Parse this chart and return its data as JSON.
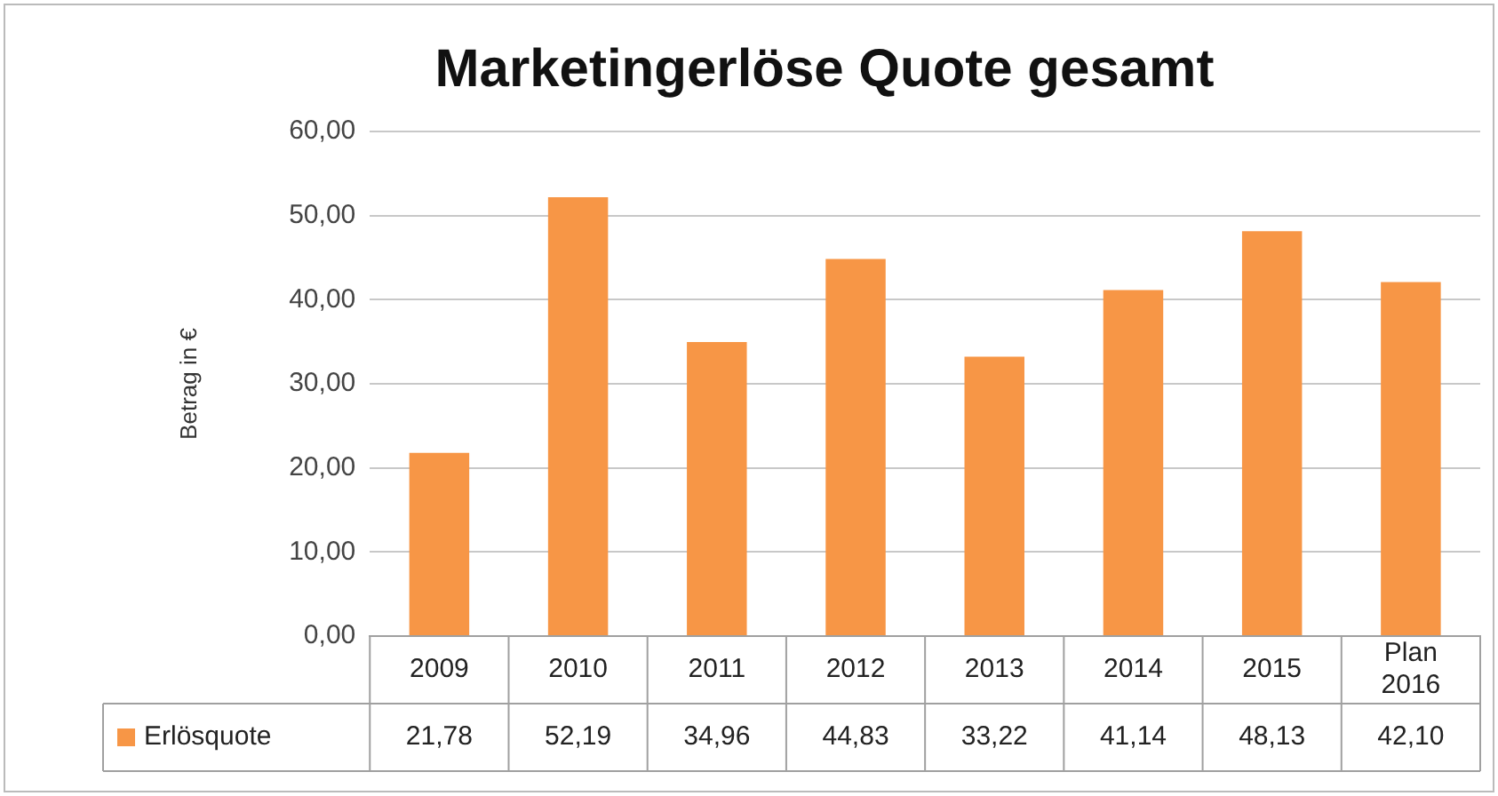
{
  "chart_data": {
    "type": "bar",
    "title": "Marketingerlöse Quote gesamt",
    "ylabel": "Betrag in €",
    "categories": [
      "2009",
      "2010",
      "2011",
      "2012",
      "2013",
      "2014",
      "2015",
      "Plan 2016"
    ],
    "series": [
      {
        "name": "Erlösquote",
        "color": "#f79646",
        "values": [
          21.78,
          52.19,
          34.96,
          44.83,
          33.22,
          41.14,
          48.13,
          42.1
        ],
        "value_labels": [
          "21,78",
          "52,19",
          "34,96",
          "44,83",
          "33,22",
          "41,14",
          "48,13",
          "42,10"
        ]
      }
    ],
    "ylim": [
      0,
      60
    ],
    "yticks": [
      {
        "value": 0,
        "label": "0,00"
      },
      {
        "value": 10,
        "label": "10,00"
      },
      {
        "value": 20,
        "label": "20,00"
      },
      {
        "value": 30,
        "label": "30,00"
      },
      {
        "value": 40,
        "label": "40,00"
      },
      {
        "value": 50,
        "label": "50,00"
      },
      {
        "value": 60,
        "label": "60,00"
      }
    ],
    "grid": "y",
    "legend": "bottom"
  }
}
